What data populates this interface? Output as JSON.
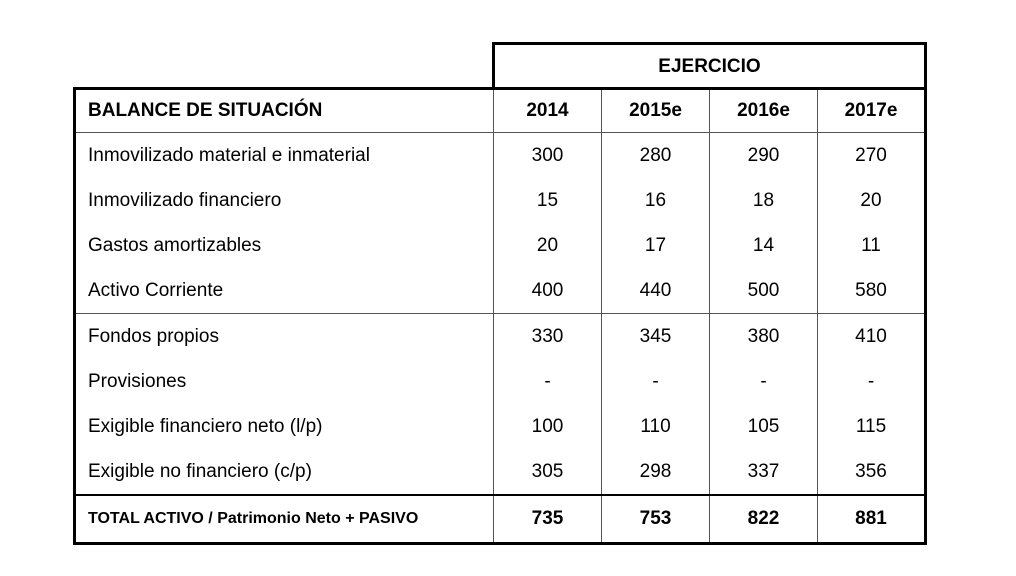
{
  "header": {
    "ejercicio": "EJERCICIO"
  },
  "columns": {
    "title": "BALANCE DE SITUACIÓN",
    "years": [
      "2014",
      "2015e",
      "2016e",
      "2017e"
    ]
  },
  "rows": [
    {
      "label": "Inmovilizado material e inmaterial",
      "values": [
        "300",
        "280",
        "290",
        "270"
      ]
    },
    {
      "label": "Inmovilizado financiero",
      "values": [
        "15",
        "16",
        "18",
        "20"
      ]
    },
    {
      "label": "Gastos amortizables",
      "values": [
        "20",
        "17",
        "14",
        "11"
      ]
    },
    {
      "label": "Activo Corriente",
      "values": [
        "400",
        "440",
        "500",
        "580"
      ]
    },
    {
      "label": "Fondos propios",
      "values": [
        "330",
        "345",
        "380",
        "410"
      ]
    },
    {
      "label": "Provisiones",
      "values": [
        "-",
        "-",
        "-",
        "-"
      ]
    },
    {
      "label": "Exigible financiero neto (l/p)",
      "values": [
        "100",
        "110",
        "105",
        "115"
      ]
    },
    {
      "label": "Exigible no financiero (c/p)",
      "values": [
        "305",
        "298",
        "337",
        "356"
      ]
    }
  ],
  "total": {
    "label": "TOTAL ACTIVO / Patrimonio Neto + PASIVO",
    "values": [
      "735",
      "753",
      "822",
      "881"
    ]
  }
}
